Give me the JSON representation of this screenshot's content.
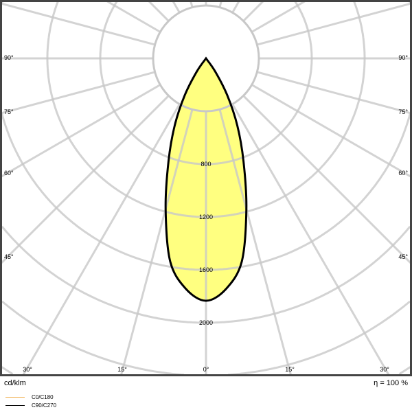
{
  "chart_data": {
    "type": "polar",
    "unit_label": "cd/klm",
    "efficiency_label": "η = 100 %",
    "radial_ticks": [
      400,
      800,
      1200,
      1600,
      2000,
      2400,
      2800,
      3200
    ],
    "radial_tick_labels": [
      "800",
      "1200",
      "1600",
      "2000"
    ],
    "angle_step_deg": 15,
    "side_angle_labels": [
      "90°",
      "75°",
      "60°",
      "45°"
    ],
    "bottom_angle_labels": [
      "30°",
      "15°",
      "0°",
      "15°",
      "30°"
    ],
    "series": [
      {
        "name": "C0/C180",
        "color": "#f0b050",
        "angles_deg": [
          0,
          5,
          10,
          15,
          20,
          25,
          30,
          35,
          40
        ],
        "values": [
          1834,
          1750,
          1560,
          1180,
          830,
          560,
          320,
          120,
          0
        ]
      },
      {
        "name": "C90/C270",
        "color": "#000000",
        "angles_deg": [
          0,
          5,
          10,
          15,
          20,
          25,
          30,
          35,
          40
        ],
        "values": [
          1834,
          1750,
          1560,
          1180,
          830,
          560,
          320,
          120,
          0
        ]
      }
    ],
    "fill_color": "#ffff80",
    "grid": true,
    "legend_placement": "bottom-left"
  }
}
